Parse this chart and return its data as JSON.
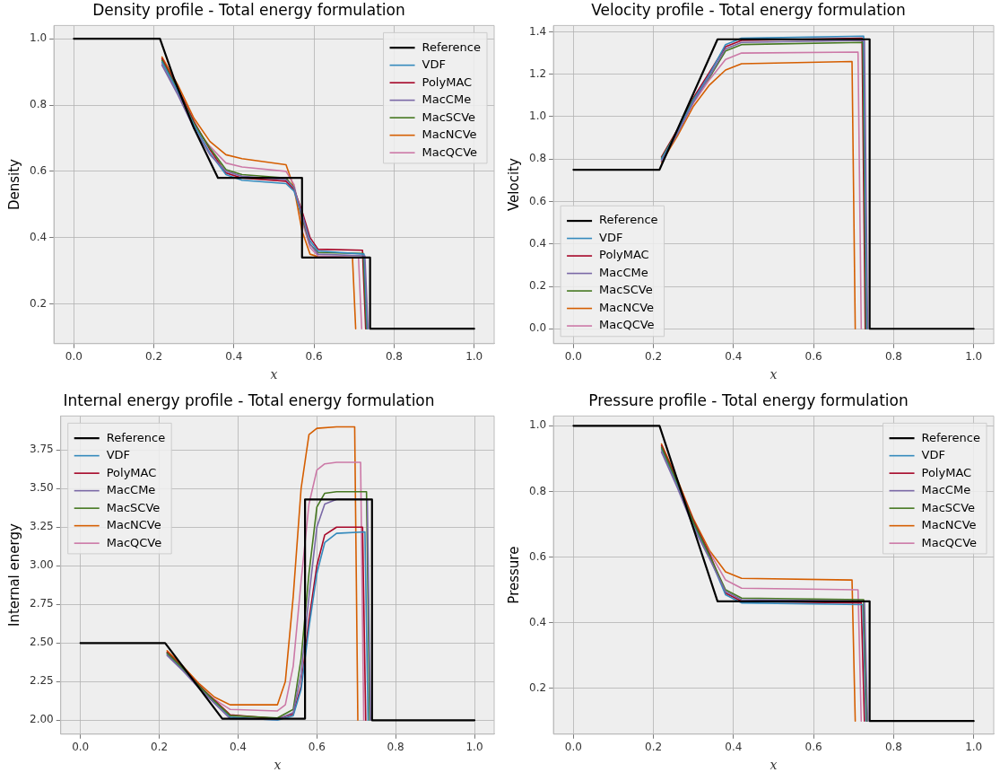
{
  "chart_data": [
    {
      "type": "line",
      "title": "Density profile - Total energy formulation",
      "xlabel": "x",
      "ylabel": "Density",
      "xlim": [
        -0.05,
        1.05
      ],
      "xticks": [
        {
          "value": 0,
          "label": "0.0"
        },
        {
          "value": 0.2,
          "label": "0.2"
        },
        {
          "value": 0.4,
          "label": "0.4"
        },
        {
          "value": 0.6,
          "label": "0.6"
        },
        {
          "value": 0.8,
          "label": "0.8"
        },
        {
          "value": 1,
          "label": "1.0"
        }
      ],
      "ylim": [
        0.08,
        1.04
      ],
      "yticks": [
        {
          "value": 0.2,
          "label": "0.2"
        },
        {
          "value": 0.4,
          "label": "0.4"
        },
        {
          "value": 0.6,
          "label": "0.6"
        },
        {
          "value": 0.8,
          "label": "0.8"
        },
        {
          "value": 1,
          "label": "1.0"
        }
      ],
      "grid": true,
      "legend": "top right",
      "marker": "none",
      "line_style": "solid",
      "series": [
        {
          "name": "Reference",
          "color": "#000000",
          "x": [
            0,
            0.215,
            0.25,
            0.3,
            0.36,
            0.57,
            0.57,
            0.74,
            0.74,
            1
          ],
          "values": [
            1,
            1,
            0.88,
            0.73,
            0.58,
            0.58,
            0.34,
            0.34,
            0.125,
            0.125
          ]
        },
        {
          "name": "VDF",
          "color": "#348abd",
          "x": [
            0.22,
            0.26,
            0.3,
            0.34,
            0.38,
            0.42,
            0.53,
            0.55,
            0.57,
            0.59,
            0.61,
            0.725,
            0.733
          ],
          "values": [
            0.93,
            0.84,
            0.74,
            0.655,
            0.59,
            0.573,
            0.563,
            0.54,
            0.47,
            0.39,
            0.36,
            0.35,
            0.125
          ]
        },
        {
          "name": "PolyMAC",
          "color": "#a60628",
          "x": [
            0.22,
            0.26,
            0.3,
            0.34,
            0.38,
            0.42,
            0.53,
            0.55,
            0.57,
            0.59,
            0.61,
            0.721,
            0.729
          ],
          "values": [
            0.94,
            0.85,
            0.75,
            0.665,
            0.595,
            0.58,
            0.57,
            0.545,
            0.48,
            0.4,
            0.365,
            0.362,
            0.125
          ]
        },
        {
          "name": "MacCMe",
          "color": "#7a68a6",
          "x": [
            0.22,
            0.26,
            0.3,
            0.34,
            0.38,
            0.42,
            0.53,
            0.55,
            0.57,
            0.59,
            0.61,
            0.727,
            0.735
          ],
          "values": [
            0.92,
            0.83,
            0.73,
            0.65,
            0.6,
            0.585,
            0.575,
            0.55,
            0.47,
            0.38,
            0.35,
            0.345,
            0.125
          ]
        },
        {
          "name": "MacSCVe",
          "color": "#467821",
          "x": [
            0.22,
            0.26,
            0.3,
            0.34,
            0.38,
            0.42,
            0.53,
            0.55,
            0.57,
            0.59,
            0.61,
            0.723,
            0.731
          ],
          "values": [
            0.935,
            0.845,
            0.745,
            0.67,
            0.605,
            0.59,
            0.58,
            0.55,
            0.46,
            0.38,
            0.355,
            0.352,
            0.125
          ]
        },
        {
          "name": "MacNCVe",
          "color": "#d55e00",
          "x": [
            0.22,
            0.26,
            0.3,
            0.34,
            0.38,
            0.42,
            0.53,
            0.55,
            0.57,
            0.59,
            0.61,
            0.696,
            0.704
          ],
          "values": [
            0.945,
            0.86,
            0.76,
            0.69,
            0.65,
            0.638,
            0.62,
            0.55,
            0.42,
            0.35,
            0.342,
            0.34,
            0.125
          ]
        },
        {
          "name": "MacQCVe",
          "color": "#cc79a7",
          "x": [
            0.22,
            0.26,
            0.3,
            0.34,
            0.38,
            0.42,
            0.53,
            0.55,
            0.57,
            0.59,
            0.61,
            0.711,
            0.719
          ],
          "values": [
            0.925,
            0.835,
            0.735,
            0.675,
            0.625,
            0.613,
            0.6,
            0.56,
            0.45,
            0.37,
            0.345,
            0.34,
            0.125
          ]
        }
      ]
    },
    {
      "type": "line",
      "title": "Velocity profile - Total energy formulation",
      "xlabel": "x",
      "ylabel": "Velocity",
      "xlim": [
        -0.05,
        1.05
      ],
      "xticks": [
        {
          "value": 0,
          "label": "0.0"
        },
        {
          "value": 0.2,
          "label": "0.2"
        },
        {
          "value": 0.4,
          "label": "0.4"
        },
        {
          "value": 0.6,
          "label": "0.6"
        },
        {
          "value": 0.8,
          "label": "0.8"
        },
        {
          "value": 1,
          "label": "1.0"
        }
      ],
      "ylim": [
        -0.07,
        1.43
      ],
      "yticks": [
        {
          "value": 0,
          "label": "0.0"
        },
        {
          "value": 0.2,
          "label": "0.2"
        },
        {
          "value": 0.4,
          "label": "0.4"
        },
        {
          "value": 0.6,
          "label": "0.6"
        },
        {
          "value": 0.8,
          "label": "0.8"
        },
        {
          "value": 1,
          "label": "1.0"
        },
        {
          "value": 1.2,
          "label": "1.2"
        },
        {
          "value": 1.4,
          "label": "1.4"
        }
      ],
      "grid": true,
      "legend": "bottom left",
      "marker": "none",
      "line_style": "solid",
      "series": [
        {
          "name": "Reference",
          "color": "#000000",
          "x": [
            0,
            0.215,
            0.36,
            0.74,
            0.74,
            1
          ],
          "values": [
            0.75,
            0.75,
            1.365,
            1.365,
            0,
            0
          ]
        },
        {
          "name": "VDF",
          "color": "#348abd",
          "x": [
            0.22,
            0.26,
            0.3,
            0.34,
            0.38,
            0.42,
            0.725,
            0.733
          ],
          "values": [
            0.8,
            0.93,
            1.08,
            1.2,
            1.34,
            1.37,
            1.38,
            0
          ]
        },
        {
          "name": "PolyMAC",
          "color": "#a60628",
          "x": [
            0.22,
            0.26,
            0.3,
            0.34,
            0.38,
            0.42,
            0.721,
            0.729
          ],
          "values": [
            0.81,
            0.94,
            1.09,
            1.21,
            1.33,
            1.36,
            1.37,
            0
          ]
        },
        {
          "name": "MacCMe",
          "color": "#7a68a6",
          "x": [
            0.22,
            0.26,
            0.3,
            0.34,
            0.38,
            0.42,
            0.727,
            0.735
          ],
          "values": [
            0.79,
            0.92,
            1.07,
            1.19,
            1.32,
            1.35,
            1.36,
            0
          ]
        },
        {
          "name": "MacSCVe",
          "color": "#467821",
          "x": [
            0.22,
            0.26,
            0.3,
            0.34,
            0.38,
            0.42,
            0.723,
            0.731
          ],
          "values": [
            0.805,
            0.935,
            1.085,
            1.185,
            1.31,
            1.34,
            1.35,
            0
          ]
        },
        {
          "name": "MacNCVe",
          "color": "#d55e00",
          "x": [
            0.22,
            0.26,
            0.3,
            0.34,
            0.38,
            0.42,
            0.696,
            0.704
          ],
          "values": [
            0.785,
            0.91,
            1.05,
            1.15,
            1.22,
            1.25,
            1.26,
            0
          ]
        },
        {
          "name": "MacQCVe",
          "color": "#cc79a7",
          "x": [
            0.22,
            0.26,
            0.3,
            0.34,
            0.38,
            0.42,
            0.711,
            0.719
          ],
          "values": [
            0.795,
            0.925,
            1.065,
            1.175,
            1.27,
            1.3,
            1.305,
            0
          ]
        }
      ]
    },
    {
      "type": "line",
      "title": "Internal energy profile - Total energy formulation",
      "xlabel": "x",
      "ylabel": "Internal energy",
      "xlim": [
        -0.05,
        1.05
      ],
      "xticks": [
        {
          "value": 0,
          "label": "0.0"
        },
        {
          "value": 0.2,
          "label": "0.2"
        },
        {
          "value": 0.4,
          "label": "0.4"
        },
        {
          "value": 0.6,
          "label": "0.6"
        },
        {
          "value": 0.8,
          "label": "0.8"
        },
        {
          "value": 1,
          "label": "1.0"
        }
      ],
      "ylim": [
        1.91,
        3.97
      ],
      "yticks": [
        {
          "value": 2,
          "label": "2.00"
        },
        {
          "value": 2.25,
          "label": "2.25"
        },
        {
          "value": 2.5,
          "label": "2.50"
        },
        {
          "value": 2.75,
          "label": "2.75"
        },
        {
          "value": 3,
          "label": "3.00"
        },
        {
          "value": 3.25,
          "label": "3.25"
        },
        {
          "value": 3.5,
          "label": "3.50"
        },
        {
          "value": 3.75,
          "label": "3.75"
        }
      ],
      "grid": true,
      "legend": "top left",
      "marker": "none",
      "line_style": "solid",
      "series": [
        {
          "name": "Reference",
          "color": "#000000",
          "x": [
            0,
            0.215,
            0.36,
            0.57,
            0.57,
            0.74,
            0.74,
            1
          ],
          "values": [
            2.5,
            2.5,
            2.01,
            2.01,
            3.43,
            3.43,
            2,
            2
          ]
        },
        {
          "name": "VDF",
          "color": "#348abd",
          "x": [
            0.22,
            0.26,
            0.3,
            0.34,
            0.38,
            0.5,
            0.54,
            0.56,
            0.58,
            0.6,
            0.62,
            0.65,
            0.722,
            0.73
          ],
          "values": [
            2.43,
            2.33,
            2.22,
            2.12,
            2.02,
            2,
            2.03,
            2.2,
            2.6,
            2.95,
            3.15,
            3.21,
            3.22,
            2
          ]
        },
        {
          "name": "PolyMAC",
          "color": "#a60628",
          "x": [
            0.22,
            0.26,
            0.3,
            0.34,
            0.38,
            0.5,
            0.54,
            0.56,
            0.58,
            0.6,
            0.62,
            0.65,
            0.716,
            0.724
          ],
          "values": [
            2.44,
            2.34,
            2.23,
            2.13,
            2.035,
            2.01,
            2.04,
            2.22,
            2.65,
            3,
            3.2,
            3.25,
            3.25,
            2
          ]
        },
        {
          "name": "MacCMe",
          "color": "#7a68a6",
          "x": [
            0.22,
            0.26,
            0.3,
            0.34,
            0.38,
            0.5,
            0.54,
            0.56,
            0.58,
            0.6,
            0.62,
            0.65,
            0.728,
            0.736
          ],
          "values": [
            2.42,
            2.32,
            2.21,
            2.11,
            2.01,
            2.005,
            2.05,
            2.3,
            2.8,
            3.25,
            3.4,
            3.43,
            3.43,
            2
          ]
        },
        {
          "name": "MacSCVe",
          "color": "#467821",
          "x": [
            0.22,
            0.26,
            0.3,
            0.34,
            0.38,
            0.5,
            0.54,
            0.56,
            0.58,
            0.6,
            0.62,
            0.65,
            0.726,
            0.734
          ],
          "values": [
            2.435,
            2.335,
            2.225,
            2.125,
            2.03,
            2.015,
            2.07,
            2.4,
            2.95,
            3.38,
            3.47,
            3.48,
            3.48,
            2
          ]
        },
        {
          "name": "MacNCVe",
          "color": "#d55e00",
          "x": [
            0.22,
            0.26,
            0.3,
            0.34,
            0.38,
            0.5,
            0.52,
            0.54,
            0.56,
            0.58,
            0.6,
            0.65,
            0.696,
            0.704
          ],
          "values": [
            2.45,
            2.35,
            2.24,
            2.15,
            2.1,
            2.1,
            2.25,
            2.8,
            3.5,
            3.85,
            3.89,
            3.9,
            3.9,
            2
          ]
        },
        {
          "name": "MacQCVe",
          "color": "#cc79a7",
          "x": [
            0.22,
            0.26,
            0.3,
            0.34,
            0.38,
            0.5,
            0.52,
            0.54,
            0.56,
            0.58,
            0.6,
            0.62,
            0.65,
            0.711,
            0.719
          ],
          "values": [
            2.425,
            2.325,
            2.215,
            2.135,
            2.07,
            2.06,
            2.1,
            2.35,
            2.9,
            3.4,
            3.62,
            3.66,
            3.67,
            3.67,
            2
          ]
        }
      ]
    },
    {
      "type": "line",
      "title": "Pressure profile - Total energy formulation",
      "xlabel": "x",
      "ylabel": "Pressure",
      "xlim": [
        -0.05,
        1.05
      ],
      "xticks": [
        {
          "value": 0,
          "label": "0.0"
        },
        {
          "value": 0.2,
          "label": "0.2"
        },
        {
          "value": 0.4,
          "label": "0.4"
        },
        {
          "value": 0.6,
          "label": "0.6"
        },
        {
          "value": 0.8,
          "label": "0.8"
        },
        {
          "value": 1,
          "label": "1.0"
        }
      ],
      "ylim": [
        0.06,
        1.03
      ],
      "yticks": [
        {
          "value": 0.2,
          "label": "0.2"
        },
        {
          "value": 0.4,
          "label": "0.4"
        },
        {
          "value": 0.6,
          "label": "0.6"
        },
        {
          "value": 0.8,
          "label": "0.8"
        },
        {
          "value": 1,
          "label": "1.0"
        }
      ],
      "grid": true,
      "legend": "top right",
      "marker": "none",
      "line_style": "solid",
      "series": [
        {
          "name": "Reference",
          "color": "#000000",
          "x": [
            0,
            0.215,
            0.36,
            0.74,
            0.74,
            1
          ],
          "values": [
            1,
            1,
            0.465,
            0.465,
            0.1,
            0.1
          ]
        },
        {
          "name": "VDF",
          "color": "#348abd",
          "x": [
            0.22,
            0.26,
            0.3,
            0.34,
            0.38,
            0.42,
            0.723,
            0.731
          ],
          "values": [
            0.93,
            0.82,
            0.7,
            0.6,
            0.485,
            0.46,
            0.455,
            0.1
          ]
        },
        {
          "name": "PolyMAC",
          "color": "#a60628",
          "x": [
            0.22,
            0.26,
            0.3,
            0.34,
            0.38,
            0.42,
            0.719,
            0.727
          ],
          "values": [
            0.94,
            0.83,
            0.71,
            0.61,
            0.49,
            0.465,
            0.46,
            0.1
          ]
        },
        {
          "name": "MacCMe",
          "color": "#7a68a6",
          "x": [
            0.22,
            0.26,
            0.3,
            0.34,
            0.38,
            0.42,
            0.727,
            0.735
          ],
          "values": [
            0.92,
            0.81,
            0.69,
            0.595,
            0.495,
            0.47,
            0.465,
            0.1
          ]
        },
        {
          "name": "MacSCVe",
          "color": "#467821",
          "x": [
            0.22,
            0.26,
            0.3,
            0.34,
            0.38,
            0.42,
            0.725,
            0.733
          ],
          "values": [
            0.935,
            0.825,
            0.705,
            0.605,
            0.5,
            0.475,
            0.47,
            0.1
          ]
        },
        {
          "name": "MacNCVe",
          "color": "#d55e00",
          "x": [
            0.22,
            0.26,
            0.3,
            0.34,
            0.38,
            0.42,
            0.696,
            0.704
          ],
          "values": [
            0.945,
            0.835,
            0.715,
            0.62,
            0.555,
            0.535,
            0.53,
            0.1
          ]
        },
        {
          "name": "MacQCVe",
          "color": "#cc79a7",
          "x": [
            0.22,
            0.26,
            0.3,
            0.34,
            0.38,
            0.42,
            0.711,
            0.719
          ],
          "values": [
            0.925,
            0.815,
            0.695,
            0.615,
            0.53,
            0.505,
            0.5,
            0.1
          ]
        }
      ]
    }
  ]
}
